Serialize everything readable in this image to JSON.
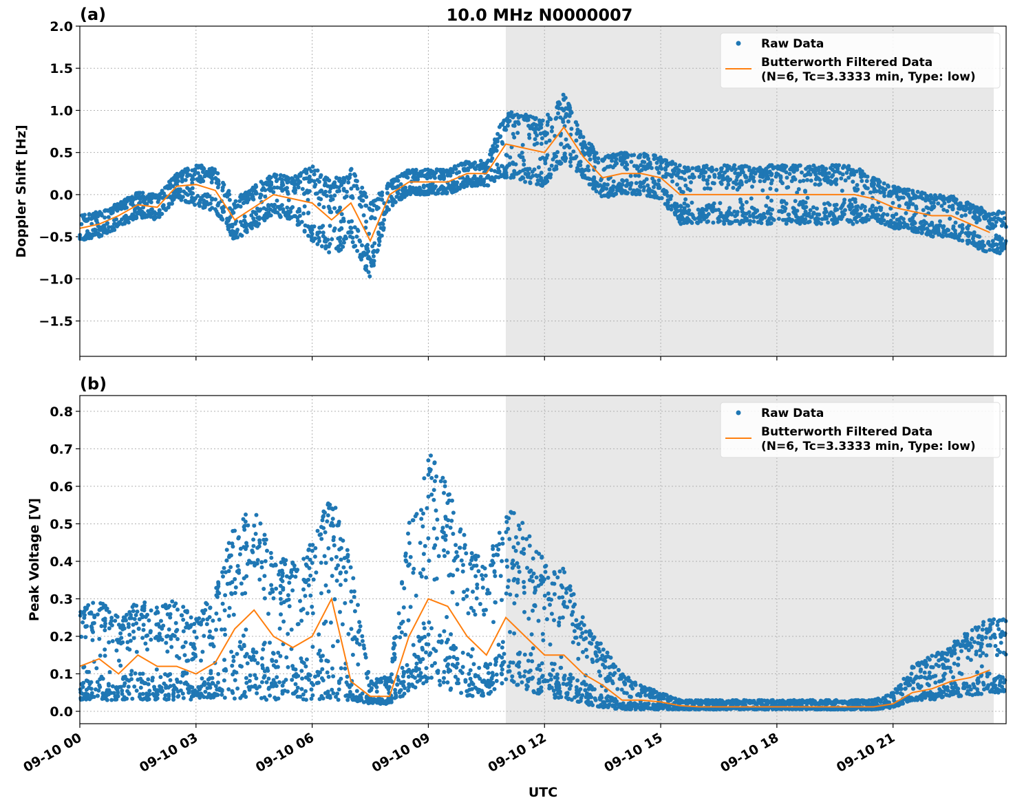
{
  "title": "10.0 MHz N0000007",
  "colors": {
    "raw": "#1f77b4",
    "filtered": "#ff7f0e",
    "shade": "#e8e8e8",
    "grid": "#b0b0b0"
  },
  "legend": {
    "raw": "Raw Data",
    "filtered_line1": "Butterworth Filtered Data",
    "filtered_line2": "(N=6, Tc=3.3333 min, Type: low)",
    "placement": "top-right"
  },
  "xlabel": "UTC",
  "xticks": [
    "09-10 00",
    "09-10 03",
    "09-10 06",
    "09-10 09",
    "09-10 12",
    "09-10 15",
    "09-10 18",
    "09-10 21"
  ],
  "chart_data": [
    {
      "type": "scatter+line",
      "panel_label": "(a)",
      "ylabel": "Doppler Shift [Hz]",
      "xlim_hours": [
        0,
        23.92
      ],
      "ylim": [
        -1.92,
        2.0
      ],
      "yticks": [
        -1.5,
        -1.0,
        -0.5,
        0.0,
        0.5,
        1.0,
        1.5,
        2.0
      ],
      "ytick_labels": [
        "−1.5",
        "−1.0",
        "−0.5",
        "0.0",
        "0.5",
        "1.0",
        "1.5",
        "2.0"
      ],
      "grid": true,
      "shaded_hours": [
        11.0,
        23.6
      ],
      "x_hours": [
        0,
        0.5,
        1,
        1.5,
        2,
        2.5,
        3,
        3.5,
        4,
        4.5,
        5,
        5.5,
        6,
        6.5,
        7,
        7.5,
        8,
        8.5,
        9,
        9.5,
        10,
        10.5,
        11,
        11.5,
        12,
        12.5,
        13,
        13.5,
        14,
        14.5,
        15,
        15.5,
        16,
        16.5,
        17,
        17.5,
        18,
        18.5,
        19,
        19.5,
        20,
        20.5,
        21,
        21.5,
        22,
        22.5,
        23,
        23.5
      ],
      "filtered": [
        -0.4,
        -0.35,
        -0.25,
        -0.12,
        -0.15,
        0.1,
        0.12,
        0.05,
        -0.3,
        -0.15,
        0.0,
        -0.05,
        -0.1,
        -0.3,
        -0.1,
        -0.55,
        0.0,
        0.15,
        0.15,
        0.15,
        0.25,
        0.25,
        0.6,
        0.55,
        0.5,
        0.8,
        0.45,
        0.2,
        0.25,
        0.25,
        0.2,
        0.0,
        0.0,
        0.0,
        0.0,
        0.0,
        0.0,
        0.0,
        0.0,
        0.0,
        0.0,
        -0.05,
        -0.15,
        -0.2,
        -0.25,
        -0.25,
        -0.35,
        -0.45
      ],
      "raw_lower": [
        -0.55,
        -0.5,
        -0.4,
        -0.27,
        -0.3,
        -0.05,
        -0.13,
        -0.2,
        -0.55,
        -0.4,
        -0.25,
        -0.3,
        -0.55,
        -0.75,
        -0.55,
        -1.0,
        -0.15,
        0.0,
        0.0,
        0.0,
        0.1,
        0.1,
        0.2,
        0.15,
        0.1,
        0.4,
        0.2,
        -0.05,
        0.0,
        0.0,
        -0.05,
        -0.35,
        -0.35,
        -0.35,
        -0.35,
        -0.35,
        -0.35,
        -0.35,
        -0.35,
        -0.35,
        -0.35,
        -0.3,
        -0.4,
        -0.45,
        -0.5,
        -0.5,
        -0.6,
        -0.7
      ],
      "raw_upper": [
        -0.25,
        -0.2,
        -0.1,
        0.03,
        0.0,
        0.25,
        0.37,
        0.3,
        -0.05,
        0.1,
        0.25,
        0.2,
        0.35,
        0.15,
        0.35,
        -0.1,
        0.15,
        0.3,
        0.3,
        0.3,
        0.4,
        0.4,
        1.0,
        0.95,
        0.9,
        1.2,
        0.7,
        0.45,
        0.5,
        0.5,
        0.45,
        0.35,
        0.35,
        0.35,
        0.35,
        0.35,
        0.35,
        0.35,
        0.35,
        0.35,
        0.35,
        0.2,
        0.1,
        0.05,
        0.0,
        0.0,
        -0.1,
        -0.2
      ]
    },
    {
      "type": "scatter+line",
      "panel_label": "(b)",
      "ylabel": "Peak Voltage [V]",
      "xlim_hours": [
        0,
        23.92
      ],
      "ylim": [
        -0.033,
        0.842
      ],
      "yticks": [
        0.0,
        0.1,
        0.2,
        0.3,
        0.4,
        0.5,
        0.6,
        0.7,
        0.8
      ],
      "ytick_labels": [
        "0.0",
        "0.1",
        "0.2",
        "0.3",
        "0.4",
        "0.5",
        "0.6",
        "0.7",
        "0.8"
      ],
      "grid": true,
      "shaded_hours": [
        11.0,
        23.6
      ],
      "x_hours": [
        0,
        0.5,
        1,
        1.5,
        2,
        2.5,
        3,
        3.5,
        4,
        4.5,
        5,
        5.5,
        6,
        6.5,
        7,
        7.5,
        8,
        8.5,
        9,
        9.5,
        10,
        10.5,
        11,
        11.5,
        12,
        12.5,
        13,
        13.5,
        14,
        14.5,
        15,
        15.5,
        16,
        16.5,
        17,
        17.5,
        18,
        18.5,
        19,
        19.5,
        20,
        20.5,
        21,
        21.5,
        22,
        22.5,
        23,
        23.5
      ],
      "filtered": [
        0.12,
        0.14,
        0.1,
        0.15,
        0.12,
        0.12,
        0.1,
        0.13,
        0.22,
        0.27,
        0.2,
        0.17,
        0.2,
        0.3,
        0.08,
        0.04,
        0.04,
        0.2,
        0.3,
        0.28,
        0.2,
        0.15,
        0.25,
        0.2,
        0.15,
        0.15,
        0.1,
        0.07,
        0.03,
        0.03,
        0.025,
        0.015,
        0.012,
        0.012,
        0.012,
        0.012,
        0.012,
        0.012,
        0.012,
        0.012,
        0.012,
        0.012,
        0.02,
        0.05,
        0.06,
        0.08,
        0.09,
        0.11
      ],
      "raw_lower": [
        0.03,
        0.03,
        0.03,
        0.03,
        0.03,
        0.03,
        0.03,
        0.03,
        0.03,
        0.03,
        0.03,
        0.03,
        0.03,
        0.03,
        0.03,
        0.02,
        0.02,
        0.05,
        0.08,
        0.06,
        0.04,
        0.04,
        0.08,
        0.06,
        0.04,
        0.03,
        0.02,
        0.01,
        0.005,
        0.005,
        0.005,
        0.005,
        0.005,
        0.005,
        0.005,
        0.005,
        0.005,
        0.005,
        0.005,
        0.005,
        0.005,
        0.005,
        0.01,
        0.03,
        0.03,
        0.04,
        0.04,
        0.05
      ],
      "raw_upper": [
        0.28,
        0.3,
        0.25,
        0.3,
        0.28,
        0.3,
        0.25,
        0.33,
        0.5,
        0.55,
        0.42,
        0.4,
        0.45,
        0.6,
        0.4,
        0.08,
        0.1,
        0.5,
        0.7,
        0.6,
        0.45,
        0.4,
        0.55,
        0.5,
        0.4,
        0.38,
        0.25,
        0.18,
        0.1,
        0.07,
        0.05,
        0.03,
        0.03,
        0.03,
        0.03,
        0.03,
        0.03,
        0.03,
        0.03,
        0.03,
        0.03,
        0.03,
        0.05,
        0.12,
        0.15,
        0.18,
        0.22,
        0.25
      ]
    }
  ]
}
